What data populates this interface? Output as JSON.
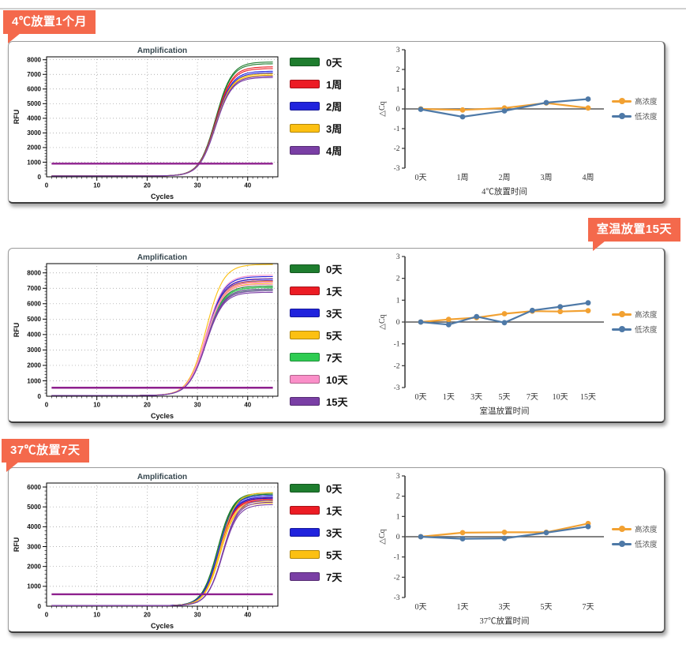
{
  "page": {
    "top_rule_color": "#d0d0d0",
    "banner_bg": "#F4694C"
  },
  "panels": [
    {
      "banner": "4℃放置1个月",
      "amp": "amp-4c",
      "dcq": "dcq-4c"
    },
    {
      "banner": "室温放置15天",
      "amp": "amp-rt",
      "dcq": "dcq-rt"
    },
    {
      "banner": "37℃放置7天",
      "amp": "amp-37",
      "dcq": "dcq-37"
    }
  ],
  "chart_data": [
    {
      "id": "amp-4c",
      "kind": "amp",
      "type": "line",
      "title": "Amplification",
      "xlabel": "Cycles",
      "ylabel": "RFU",
      "xlim": [
        0,
        46
      ],
      "ylim": [
        0,
        8200
      ],
      "xticks": [
        0,
        10,
        20,
        30,
        40
      ],
      "ytick_step": 1000,
      "ytick_max": 8000,
      "grid": "dotted",
      "threshold": 900,
      "threshold_color": "#8E208E",
      "sigmoid": {
        "baseline": 60,
        "mid": 33.6,
        "k": 0.62,
        "x_start": 1,
        "x_end": 45
      },
      "series": [
        {
          "name": "0天",
          "color": "#1E7D2E",
          "plateaus": [
            7850,
            7730
          ]
        },
        {
          "name": "1周",
          "color": "#EC1C24",
          "plateaus": [
            7520,
            7400
          ]
        },
        {
          "name": "2周",
          "color": "#2023DD",
          "plateaus": [
            7220,
            7110
          ]
        },
        {
          "name": "3周",
          "color": "#FCC012",
          "plateaus": [
            7040,
            6950
          ]
        },
        {
          "name": "4周",
          "color": "#7A3FA5",
          "plateaus": [
            6880,
            6790
          ]
        }
      ]
    },
    {
      "id": "dcq-4c",
      "kind": "dcq",
      "type": "line",
      "categories": [
        "0天",
        "1周",
        "2周",
        "3周",
        "4周"
      ],
      "xlabel": "4℃放置时间",
      "ylabel": "△Cq",
      "ylim": [
        -3,
        3
      ],
      "ytick_step": 1,
      "legend_position": "right",
      "series": [
        {
          "name": "高浓度",
          "color": "#F2A132",
          "values": [
            0,
            -0.05,
            0.05,
            0.3,
            0.05
          ]
        },
        {
          "name": "低浓度",
          "color": "#4E79A7",
          "values": [
            -0.02,
            -0.4,
            -0.1,
            0.32,
            0.5
          ]
        }
      ]
    },
    {
      "id": "amp-rt",
      "kind": "amp",
      "type": "line",
      "title": "Amplification",
      "xlabel": "Cycles",
      "ylabel": "RFU",
      "xlim": [
        0,
        46
      ],
      "ylim": [
        0,
        8600
      ],
      "xticks": [
        0,
        10,
        20,
        30,
        40
      ],
      "ytick_step": 1000,
      "ytick_max": 8000,
      "grid": "dotted",
      "threshold": 550,
      "threshold_color": "#8E208E",
      "sigmoid": {
        "baseline": 50,
        "mid": 31.7,
        "k": 0.58,
        "x_start": 1,
        "x_end": 45
      },
      "series": [
        {
          "name": "0天",
          "color": "#1E7D2E",
          "plateaus": [
            7150,
            7050,
            6950
          ]
        },
        {
          "name": "1天",
          "color": "#EC1C24",
          "plateaus": [
            7620,
            7500,
            7400
          ]
        },
        {
          "name": "3天",
          "color": "#2023DD",
          "plateaus": [
            7760,
            7600,
            7480
          ]
        },
        {
          "name": "5天",
          "color": "#FCC012",
          "plateaus": [
            8550,
            7450,
            7300
          ]
        },
        {
          "name": "7天",
          "color": "#2ECC52",
          "plateaus": [
            7060,
            6950,
            6860
          ]
        },
        {
          "name": "10天",
          "color": "#FA8FC8",
          "plateaus": [
            7850,
            7420,
            7260
          ]
        },
        {
          "name": "15天",
          "color": "#7A3FA5",
          "plateaus": [
            6940,
            6840,
            6740
          ]
        }
      ]
    },
    {
      "id": "dcq-rt",
      "kind": "dcq",
      "type": "line",
      "categories": [
        "0天",
        "1天",
        "3天",
        "5天",
        "7天",
        "10天",
        "15天"
      ],
      "xlabel": "室温放置时间",
      "ylabel": "△Cq",
      "ylim": [
        -3,
        3
      ],
      "ytick_step": 1,
      "legend_position": "right",
      "series": [
        {
          "name": "高浓度",
          "color": "#F2A132",
          "values": [
            0,
            0.12,
            0.2,
            0.38,
            0.5,
            0.48,
            0.52
          ]
        },
        {
          "name": "低浓度",
          "color": "#4E79A7",
          "values": [
            0,
            -0.12,
            0.25,
            -0.03,
            0.53,
            0.7,
            0.88
          ]
        }
      ]
    },
    {
      "id": "amp-37",
      "kind": "amp",
      "type": "line",
      "title": "Amplification",
      "xlabel": "Cycles",
      "ylabel": "RFU",
      "xlim": [
        0,
        46
      ],
      "ylim": [
        0,
        6200
      ],
      "xticks": [
        0,
        10,
        20,
        30,
        40
      ],
      "ytick_step": 1000,
      "ytick_max": 6000,
      "grid": "dotted",
      "threshold": 600,
      "threshold_color": "#8E208E",
      "sigmoid": {
        "baseline": 30,
        "mid": 34.3,
        "k": 0.66,
        "x_start": 1,
        "x_end": 45
      },
      "series": [
        {
          "name": "0天",
          "color": "#1E7D2E",
          "plateaus": [
            5700,
            5640,
            5580
          ],
          "midShift": -0.3
        },
        {
          "name": "1天",
          "color": "#EC1C24",
          "plateaus": [
            5460,
            5400,
            5340
          ]
        },
        {
          "name": "3天",
          "color": "#2023DD",
          "plateaus": [
            5580,
            5500,
            5440
          ],
          "midShift": -0.1
        },
        {
          "name": "5天",
          "color": "#FCC012",
          "plateaus": [
            5720,
            5300,
            5200
          ],
          "midShift": 0.2
        },
        {
          "name": "7天",
          "color": "#7A3FA5",
          "plateaus": [
            5340,
            5240,
            5120
          ],
          "midShift": 0.7
        }
      ]
    },
    {
      "id": "dcq-37",
      "kind": "dcq",
      "type": "line",
      "categories": [
        "0天",
        "1天",
        "3天",
        "5天",
        "7天"
      ],
      "xlabel": "37℃放置时间",
      "ylabel": "△Cq",
      "ylim": [
        -3,
        3
      ],
      "ytick_step": 1,
      "legend_position": "right",
      "series": [
        {
          "name": "高浓度",
          "color": "#F2A132",
          "values": [
            0,
            0.2,
            0.22,
            0.22,
            0.65
          ]
        },
        {
          "name": "低浓度",
          "color": "#4E79A7",
          "values": [
            0,
            -0.1,
            -0.08,
            0.2,
            0.5
          ]
        }
      ]
    }
  ]
}
